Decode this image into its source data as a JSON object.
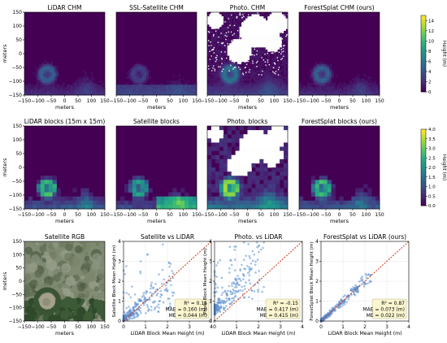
{
  "chart_data": {
    "type": "heatmap",
    "rows": [
      {
        "kind": "chm",
        "axis_label": "meters",
        "ticks": [
          -150,
          -100,
          -50,
          0,
          50,
          100,
          150
        ],
        "panels": [
          {
            "title": "LiDAR CHM",
            "pattern": "lidar"
          },
          {
            "title": "SSL-Satellite CHM",
            "pattern": "ssl"
          },
          {
            "title": "Photo. CHM",
            "pattern": "photo"
          },
          {
            "title": "ForestSplat CHM (ours)",
            "pattern": "splat"
          }
        ],
        "colorbar": {
          "label": "Height (m)",
          "ticks": [
            0,
            2,
            4,
            6,
            8,
            10,
            12,
            14
          ],
          "range": [
            0,
            15
          ]
        }
      },
      {
        "kind": "blocks",
        "axis_label": "meters",
        "ticks": [
          -150,
          -100,
          -50,
          0,
          50,
          100,
          150
        ],
        "panels": [
          {
            "title": "LiDAR blocks (15m x 15m)",
            "pattern": "lidar"
          },
          {
            "title": "Satellite blocks",
            "pattern": "sat"
          },
          {
            "title": "Photo. blocks",
            "pattern": "photo"
          },
          {
            "title": "ForestSplat blocks (ours)",
            "pattern": "splat"
          }
        ],
        "colorbar": {
          "label": "Height (m)",
          "ticks": [
            0.0,
            0.5,
            1.0,
            1.5,
            2.0,
            2.5,
            3.0,
            3.5,
            4.0
          ],
          "range": [
            0,
            4
          ]
        }
      }
    ],
    "rgb_panel": {
      "title": "Satellite RGB",
      "axis_label": "meters",
      "ticks": [
        -150,
        -100,
        -50,
        0,
        50,
        100,
        150
      ]
    },
    "scatter_panels": [
      {
        "title": "Satellite vs LiDAR",
        "ylabel": "Satellite Block Mean Height (m)",
        "xlabel": "LiDAR Block Mean Height (m)",
        "r2": "R² = 0.15",
        "mae": "MAE = 0.160 (m)",
        "me": "ME = 0.044 (m)",
        "seed": 11,
        "mode": "sat"
      },
      {
        "title": "Photo. vs LiDAR",
        "ylabel": "Photo Block Mean Height (m)",
        "xlabel": "LiDAR Block Mean Height (m)",
        "r2": "R² = -0.15",
        "mae": "MAE = 0.417 (m)",
        "me": "ME = 0.415 (m)",
        "seed": 23,
        "mode": "photo"
      },
      {
        "title": "ForestSplat vs LiDAR (ours)",
        "ylabel": "ForestSplat Block Mean Height (m)",
        "xlabel": "LiDAR Block Mean Height (m)",
        "r2": "R² = 0.87",
        "mae": "MAE = 0.073 (m)",
        "me": "ME = 0.022 (m)",
        "seed": 37,
        "mode": "splat"
      }
    ],
    "scatter_ticks": [
      0,
      1,
      2,
      3,
      4
    ],
    "scatter_range": [
      0,
      4
    ],
    "colors": {
      "viridis_low": "#440154",
      "point": "#5b8fd1",
      "one_to_one": "#cc2200",
      "annotation_bg": "#fbf6cf"
    }
  }
}
